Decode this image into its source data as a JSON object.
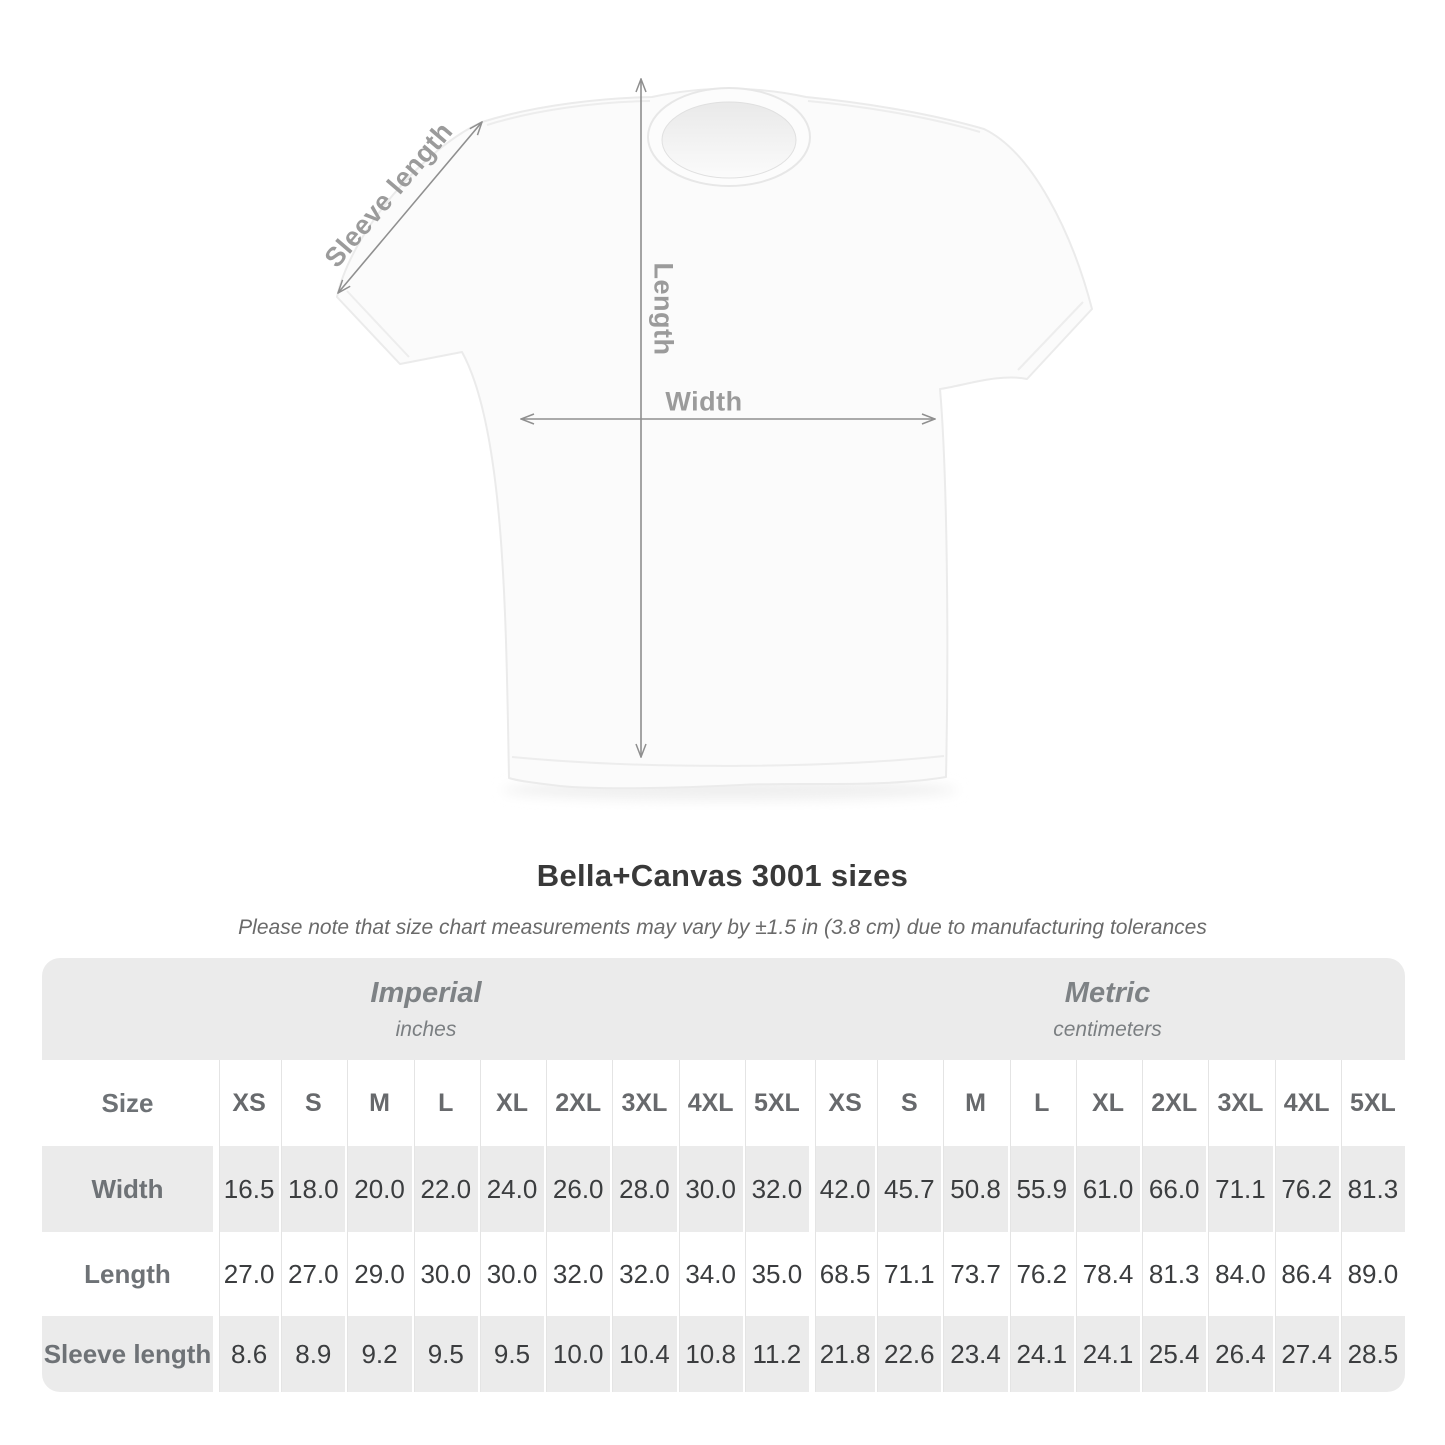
{
  "page": {
    "background": "#ffffff"
  },
  "diagram": {
    "measure_labels": {
      "sleeve": "Sleeve length",
      "length": "Length",
      "width": "Width"
    },
    "label_color": "#9b9b9b",
    "arrow_color": "#8f8f8f"
  },
  "heading": {
    "title": "Bella+Canvas 3001 sizes",
    "subtitle": "Please note that size chart measurements may vary by ±1.5 in (3.8 cm) due to manufacturing tolerances"
  },
  "table": {
    "groups": [
      {
        "label": "Imperial",
        "sublabel": "inches"
      },
      {
        "label": "Metric",
        "sublabel": "centimeters"
      }
    ],
    "size_header": "Size",
    "sizes": [
      "XS",
      "S",
      "M",
      "L",
      "XL",
      "2XL",
      "3XL",
      "4XL",
      "5XL",
      "XS",
      "S",
      "M",
      "L",
      "XL",
      "2XL",
      "3XL",
      "4XL",
      "5XL"
    ],
    "rows": [
      {
        "label": "Width",
        "cells": [
          "16.5",
          "18.0",
          "20.0",
          "22.0",
          "24.0",
          "26.0",
          "28.0",
          "30.0",
          "32.0",
          "42.0",
          "45.7",
          "50.8",
          "55.9",
          "61.0",
          "66.0",
          "71.1",
          "76.2",
          "81.3"
        ]
      },
      {
        "label": "Length",
        "cells": [
          "27.0",
          "27.0",
          "29.0",
          "30.0",
          "30.0",
          "32.0",
          "32.0",
          "34.0",
          "35.0",
          "68.5",
          "71.1",
          "73.7",
          "76.2",
          "78.4",
          "81.3",
          "84.0",
          "86.4",
          "89.0"
        ]
      },
      {
        "label": "Sleeve length",
        "cells": [
          "8.6",
          "8.9",
          "9.2",
          "9.5",
          "9.5",
          "10.0",
          "10.4",
          "10.8",
          "11.2",
          "21.8",
          "22.6",
          "23.4",
          "24.1",
          "24.1",
          "25.4",
          "26.4",
          "27.4",
          "28.5"
        ]
      }
    ]
  },
  "chart_data": {
    "type": "table",
    "title": "Bella+Canvas 3001 sizes",
    "columns": [
      "XS",
      "S",
      "M",
      "L",
      "XL",
      "2XL",
      "3XL",
      "4XL",
      "5XL"
    ],
    "unit_groups": [
      "inches",
      "centimeters"
    ],
    "rows": [
      {
        "label": "Width",
        "inches": [
          16.5,
          18.0,
          20.0,
          22.0,
          24.0,
          26.0,
          28.0,
          30.0,
          32.0
        ],
        "centimeters": [
          42.0,
          45.7,
          50.8,
          55.9,
          61.0,
          66.0,
          71.1,
          76.2,
          81.3
        ]
      },
      {
        "label": "Length",
        "inches": [
          27.0,
          27.0,
          29.0,
          30.0,
          30.0,
          32.0,
          32.0,
          34.0,
          35.0
        ],
        "centimeters": [
          68.5,
          71.1,
          73.7,
          76.2,
          78.4,
          81.3,
          84.0,
          86.4,
          89.0
        ]
      },
      {
        "label": "Sleeve length",
        "inches": [
          8.6,
          8.9,
          9.2,
          9.5,
          9.5,
          10.0,
          10.4,
          10.8,
          11.2
        ],
        "centimeters": [
          21.8,
          22.6,
          23.4,
          24.1,
          24.1,
          25.4,
          26.4,
          27.4,
          28.5
        ]
      }
    ]
  }
}
